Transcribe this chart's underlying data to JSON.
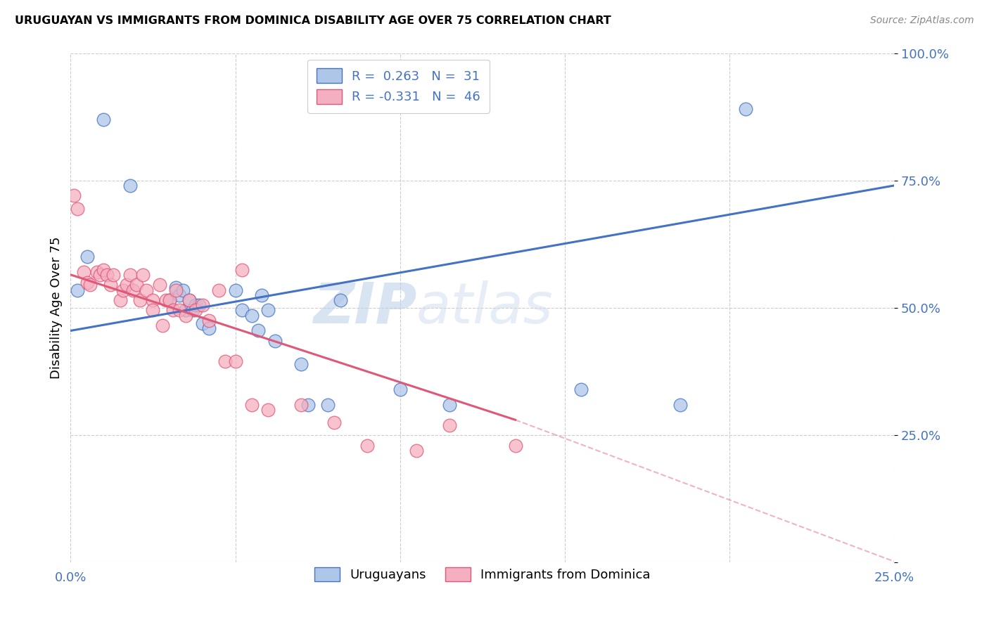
{
  "title": "URUGUAYAN VS IMMIGRANTS FROM DOMINICA DISABILITY AGE OVER 75 CORRELATION CHART",
  "source": "Source: ZipAtlas.com",
  "ylabel": "Disability Age Over 75",
  "xlabel_uruguayan": "Uruguayans",
  "xlabel_dominica": "Immigrants from Dominica",
  "xmin": 0.0,
  "xmax": 0.25,
  "ymin": 0.0,
  "ymax": 1.0,
  "r_uruguayan": 0.263,
  "n_uruguayan": 31,
  "r_dominica": -0.331,
  "n_dominica": 46,
  "color_uruguayan": "#aec6e8",
  "color_dominica": "#f4afc0",
  "line_color_uruguayan": "#4472c4",
  "line_color_dominica": "#e05878",
  "watermark_zip": "ZIP",
  "watermark_atlas": "atlas",
  "uruguayan_x": [
    0.002,
    0.01,
    0.005,
    0.018,
    0.03,
    0.032,
    0.033,
    0.034,
    0.035,
    0.036,
    0.037,
    0.038,
    0.039,
    0.04,
    0.042,
    0.05,
    0.052,
    0.055,
    0.057,
    0.058,
    0.06,
    0.062,
    0.07,
    0.072,
    0.078,
    0.082,
    0.1,
    0.115,
    0.155,
    0.185,
    0.205
  ],
  "uruguayan_y": [
    0.535,
    0.87,
    0.6,
    0.74,
    0.515,
    0.54,
    0.525,
    0.535,
    0.495,
    0.515,
    0.495,
    0.505,
    0.505,
    0.47,
    0.46,
    0.535,
    0.495,
    0.485,
    0.455,
    0.525,
    0.495,
    0.435,
    0.39,
    0.31,
    0.31,
    0.515,
    0.34,
    0.31,
    0.34,
    0.31,
    0.89
  ],
  "dominica_x": [
    0.001,
    0.002,
    0.004,
    0.005,
    0.006,
    0.008,
    0.009,
    0.01,
    0.011,
    0.012,
    0.013,
    0.015,
    0.016,
    0.017,
    0.018,
    0.019,
    0.02,
    0.021,
    0.022,
    0.023,
    0.025,
    0.025,
    0.027,
    0.028,
    0.029,
    0.03,
    0.031,
    0.032,
    0.033,
    0.035,
    0.036,
    0.038,
    0.04,
    0.042,
    0.045,
    0.047,
    0.05,
    0.052,
    0.055,
    0.06,
    0.07,
    0.08,
    0.09,
    0.105,
    0.115,
    0.135
  ],
  "dominica_y": [
    0.72,
    0.695,
    0.57,
    0.55,
    0.545,
    0.57,
    0.565,
    0.575,
    0.565,
    0.545,
    0.565,
    0.515,
    0.535,
    0.545,
    0.565,
    0.535,
    0.545,
    0.515,
    0.565,
    0.535,
    0.515,
    0.495,
    0.545,
    0.465,
    0.515,
    0.515,
    0.495,
    0.535,
    0.495,
    0.485,
    0.515,
    0.495,
    0.505,
    0.475,
    0.535,
    0.395,
    0.395,
    0.575,
    0.31,
    0.3,
    0.31,
    0.275,
    0.23,
    0.22,
    0.27,
    0.23
  ],
  "dominica_low_point": [
    0.005,
    0.075
  ],
  "line_uru_x0": 0.0,
  "line_uru_x1": 0.25,
  "line_uru_y0": 0.455,
  "line_uru_y1": 0.74,
  "line_dom_x0": 0.0,
  "line_dom_x1": 0.135,
  "line_dom_y0": 0.565,
  "line_dom_y1": 0.28,
  "line_dom_dash_x0": 0.135,
  "line_dom_dash_x1": 0.255,
  "line_dom_dash_y0": 0.28,
  "line_dom_dash_y1": -0.01
}
